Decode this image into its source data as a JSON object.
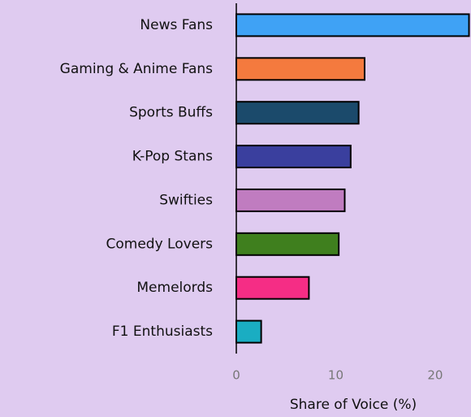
{
  "chart_data": {
    "type": "bar",
    "orientation": "horizontal",
    "categories": [
      "News Fans",
      "Gaming & Anime Fans",
      "Sports Buffs",
      "K-Pop Stans",
      "Swifties",
      "Comedy Lovers",
      "Memelords",
      "F1 Enthusiasts"
    ],
    "values": [
      23.4,
      12.9,
      12.3,
      11.5,
      10.9,
      10.3,
      7.3,
      2.5
    ],
    "colors": [
      "#3fa2f5",
      "#f47a3e",
      "#1b4a6b",
      "#3a3f9e",
      "#c07cc0",
      "#3f7f1e",
      "#f52d85",
      "#1aadc2"
    ],
    "xlabel": "Share of Voice (%)",
    "xlim": [
      0,
      23.6
    ],
    "xticks": [
      0,
      10,
      20
    ],
    "grid": false
  }
}
